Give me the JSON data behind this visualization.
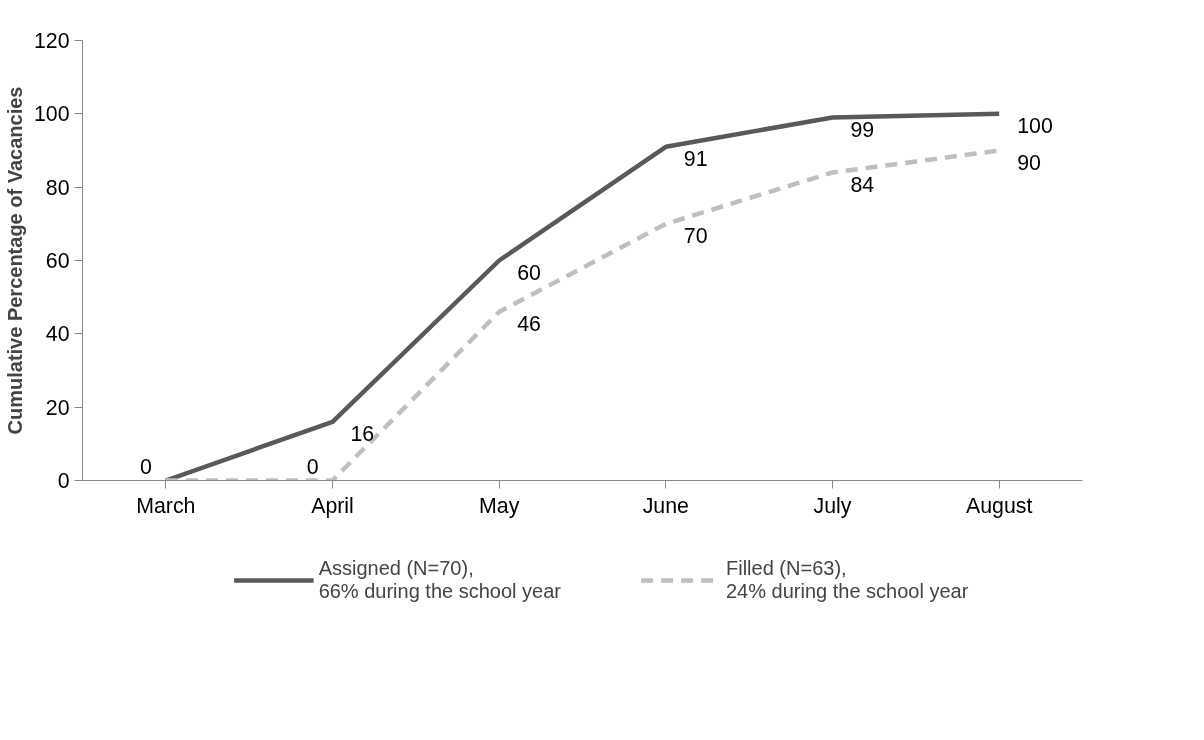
{
  "chart_data": {
    "type": "line",
    "ylabel": "Cumulative Percentage of Vacancies",
    "categories": [
      "March",
      "April",
      "May",
      "June",
      "July",
      "August"
    ],
    "series": [
      {
        "name": "Assigned (N=70),\n66% during the school year",
        "color": "#595959",
        "line_style": "solid",
        "values": [
          0,
          16,
          60,
          91,
          99,
          100
        ],
        "value_labels": [
          "0",
          "16",
          "60",
          "91",
          "99",
          "100"
        ]
      },
      {
        "name": "Filled (N=63),\n24% during the school year",
        "color": "#bfbfbf",
        "line_style": "dashed",
        "values": [
          0,
          0,
          46,
          70,
          84,
          90
        ],
        "value_labels": [
          null,
          "0",
          "46",
          "70",
          "84",
          "90"
        ]
      }
    ],
    "ylim": [
      0,
      120
    ],
    "yticks": [
      0,
      20,
      40,
      60,
      80,
      100,
      120
    ],
    "grid": false,
    "legend": "bottom",
    "marker": "none"
  }
}
